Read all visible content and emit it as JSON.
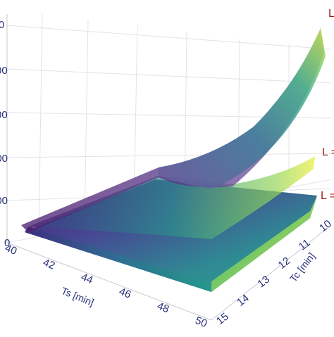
{
  "chart_data": {
    "type": "surface",
    "title": "",
    "axes": {
      "x": {
        "label": "Ts [min]",
        "range": [
          40,
          50
        ],
        "ticks": [
          "40",
          "42",
          "44",
          "46",
          "48",
          "50"
        ]
      },
      "y": {
        "label": "Tc [min]",
        "range": [
          10,
          15
        ],
        "ticks": [
          "10",
          "11",
          "12",
          "13",
          "14",
          "15"
        ]
      },
      "z": {
        "label": "",
        "ticks": [
          "0",
          "000",
          "000",
          "00",
          "00",
          "0"
        ]
      }
    },
    "grid": true,
    "colorscale": "viridis",
    "series": [
      {
        "name": "L",
        "label_text": "L",
        "relative_height": 1.0
      },
      {
        "name": "L =",
        "label_text": "L =",
        "relative_height": 0.35
      },
      {
        "name": "L =",
        "label_text": "L =",
        "relative_height": 0.15
      }
    ]
  }
}
